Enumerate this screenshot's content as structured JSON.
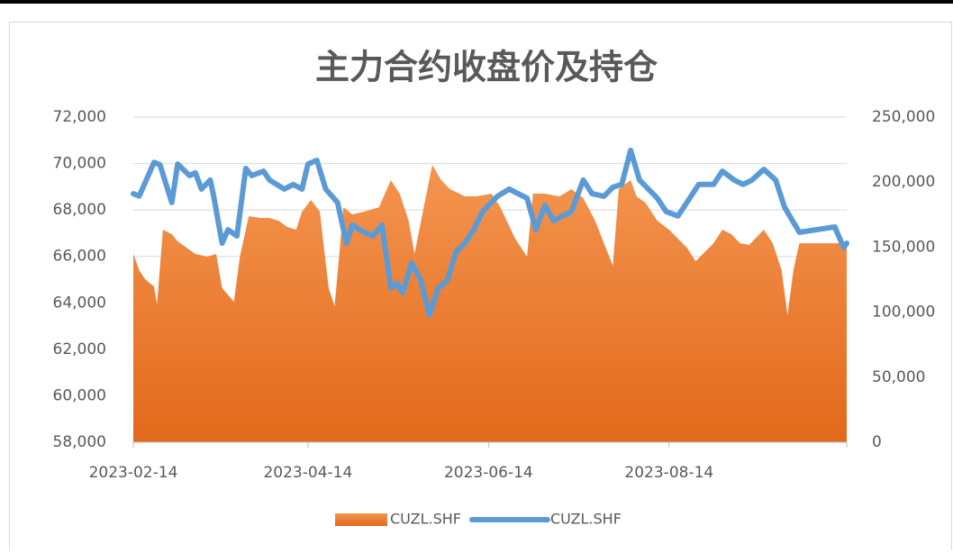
{
  "chart_data": {
    "type": "line",
    "title": "主力合约收盘价及持仓",
    "xlim": [
      "2023-02-14",
      "2023-10-13"
    ],
    "xticks": [
      "2023-02-14",
      "2023-04-14",
      "2023-06-14",
      "2023-08-14"
    ],
    "ylim": [
      58000,
      72000
    ],
    "yticks": [
      {
        "value": 58000,
        "label": "58,000"
      },
      {
        "value": 60000,
        "label": "60,000"
      },
      {
        "value": 62000,
        "label": "62,000"
      },
      {
        "value": 64000,
        "label": "64,000"
      },
      {
        "value": 66000,
        "label": "66,000"
      },
      {
        "value": 68000,
        "label": "68,000"
      },
      {
        "value": 70000,
        "label": "70,000"
      },
      {
        "value": 72000,
        "label": "72,000"
      }
    ],
    "y2lim": [
      0,
      250000
    ],
    "y2ticks": [
      0,
      {
        "value": 50000,
        "label": "50,000"
      },
      {
        "value": 100000,
        "label": "100,000"
      },
      {
        "value": 150000,
        "label": "150,000"
      },
      {
        "value": 200000,
        "label": "200,000"
      },
      {
        "value": 250000,
        "label": "250,000"
      }
    ],
    "grid": true,
    "legend": "bottom",
    "series": [
      {
        "name": "CUZL.SHF",
        "type": "area",
        "axis": "y2",
        "color": "#ed7d31",
        "x": [
          "2023-02-14",
          "2023-02-16",
          "2023-02-18",
          "2023-02-21",
          "2023-02-22",
          "2023-02-24",
          "2023-02-27",
          "2023-03-01",
          "2023-03-04",
          "2023-03-07",
          "2023-03-11",
          "2023-03-14",
          "2023-03-16",
          "2023-03-20",
          "2023-03-22",
          "2023-03-25",
          "2023-03-29",
          "2023-04-01",
          "2023-04-04",
          "2023-04-07",
          "2023-04-10",
          "2023-04-12",
          "2023-04-15",
          "2023-04-18",
          "2023-04-21",
          "2023-04-23",
          "2023-04-26",
          "2023-04-29",
          "2023-05-03",
          "2023-05-08",
          "2023-05-12",
          "2023-05-15",
          "2023-05-18",
          "2023-05-20",
          "2023-05-23",
          "2023-05-26",
          "2023-05-29",
          "2023-06-01",
          "2023-06-06",
          "2023-06-10",
          "2023-06-15",
          "2023-06-18",
          "2023-06-23",
          "2023-06-27",
          "2023-06-29",
          "2023-07-03",
          "2023-07-08",
          "2023-07-12",
          "2023-07-16",
          "2023-07-20",
          "2023-07-23",
          "2023-07-26",
          "2023-07-28",
          "2023-08-01",
          "2023-08-03",
          "2023-08-06",
          "2023-08-10",
          "2023-08-14",
          "2023-08-20",
          "2023-08-23",
          "2023-08-26",
          "2023-08-29",
          "2023-09-01",
          "2023-09-04",
          "2023-09-07",
          "2023-09-10",
          "2023-09-15",
          "2023-09-18",
          "2023-09-21",
          "2023-09-23",
          "2023-09-25",
          "2023-09-27",
          "2023-10-01",
          "2023-10-13"
        ],
        "values": [
          144700,
          132200,
          125300,
          119700,
          105900,
          163400,
          160000,
          154400,
          149600,
          144700,
          142700,
          144700,
          118400,
          108000,
          142700,
          173800,
          172400,
          172400,
          170400,
          165500,
          163400,
          177300,
          186300,
          177300,
          118400,
          104600,
          180700,
          175200,
          177300,
          180700,
          201500,
          191100,
          170400,
          144700,
          179400,
          213300,
          201500,
          194600,
          189100,
          189100,
          191100,
          180700,
          156500,
          142700,
          191100,
          191100,
          189100,
          194600,
          187700,
          170400,
          153000,
          135700,
          194600,
          201500,
          189100,
          184200,
          170400,
          163400,
          149600,
          139200,
          146100,
          153000,
          163400,
          160000,
          153000,
          151700,
          163400,
          153000,
          132300,
          97600,
          132300,
          153000,
          153000,
          153000
        ]
      },
      {
        "name": "CUZL.SHF",
        "type": "line",
        "axis": "y",
        "color": "#5b9bd5",
        "x": [
          "2023-02-14",
          "2023-02-16",
          "2023-02-21",
          "2023-02-23",
          "2023-02-27",
          "2023-03-01",
          "2023-03-05",
          "2023-03-07",
          "2023-03-09",
          "2023-03-12",
          "2023-03-13",
          "2023-03-16",
          "2023-03-18",
          "2023-03-21",
          "2023-03-24",
          "2023-03-26",
          "2023-03-30",
          "2023-04-01",
          "2023-04-06",
          "2023-04-09",
          "2023-04-12",
          "2023-04-14",
          "2023-04-17",
          "2023-04-20",
          "2023-04-24",
          "2023-04-27",
          "2023-04-29",
          "2023-05-03",
          "2023-05-06",
          "2023-05-09",
          "2023-05-12",
          "2023-05-14",
          "2023-05-16",
          "2023-05-19",
          "2023-05-22",
          "2023-05-25",
          "2023-05-28",
          "2023-05-31",
          "2023-06-03",
          "2023-06-06",
          "2023-06-09",
          "2023-06-12",
          "2023-06-17",
          "2023-06-21",
          "2023-06-24",
          "2023-06-27",
          "2023-06-30",
          "2023-07-03",
          "2023-07-06",
          "2023-07-09",
          "2023-07-12",
          "2023-07-16",
          "2023-07-19",
          "2023-07-23",
          "2023-07-26",
          "2023-07-29",
          "2023-08-01",
          "2023-08-04",
          "2023-08-07",
          "2023-08-10",
          "2023-08-13",
          "2023-08-17",
          "2023-08-20",
          "2023-08-24",
          "2023-08-29",
          "2023-09-01",
          "2023-09-05",
          "2023-09-08",
          "2023-09-11",
          "2023-09-15",
          "2023-09-19",
          "2023-09-22",
          "2023-09-27",
          "2023-10-09",
          "2023-10-10",
          "2023-10-12",
          "2023-10-13"
        ],
        "values": [
          68700,
          68600,
          70050,
          69950,
          68320,
          69980,
          69480,
          69600,
          68900,
          69290,
          68700,
          66570,
          67150,
          66880,
          69790,
          69480,
          69670,
          69290,
          68900,
          69100,
          68900,
          69980,
          70140,
          68900,
          68320,
          66570,
          67350,
          67040,
          66880,
          67350,
          64640,
          64830,
          64440,
          65720,
          65020,
          63470,
          64640,
          64950,
          66190,
          66570,
          67150,
          67930,
          68590,
          68900,
          68700,
          68510,
          67150,
          68200,
          67540,
          67740,
          67930,
          69290,
          68700,
          68590,
          68980,
          69100,
          70570,
          69290,
          68900,
          68510,
          67930,
          67740,
          68320,
          69100,
          69100,
          69670,
          69290,
          69100,
          69290,
          69750,
          69290,
          68120,
          67040,
          67270,
          66960,
          66380,
          66570
        ]
      }
    ]
  }
}
